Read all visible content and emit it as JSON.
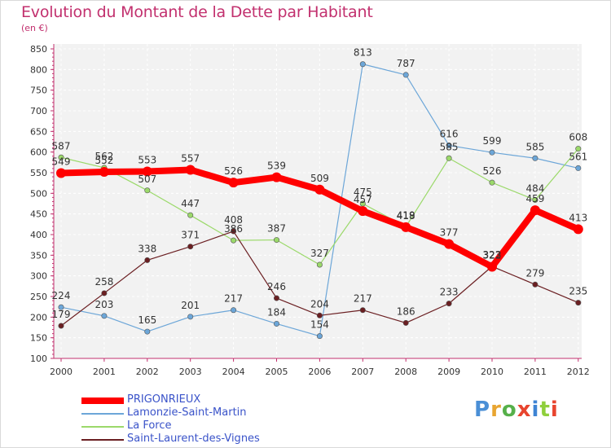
{
  "header": {
    "title": "Evolution du Montant de la Dette par Habitant",
    "subtitle": "(en €)"
  },
  "brand": {
    "text": "Proxiti",
    "colors": [
      "#4a8fd6",
      "#e8a531",
      "#56b04a",
      "#e8442e",
      "#3e84d4",
      "#8fcf3c",
      "#e8442e"
    ]
  },
  "chart_data": {
    "type": "line",
    "x": [
      "2000",
      "2001",
      "2002",
      "2003",
      "2004",
      "2005",
      "2006",
      "2007",
      "2008",
      "2009",
      "2010",
      "2011",
      "2012"
    ],
    "ylim": [
      100,
      850
    ],
    "yticks": [
      "100",
      "150",
      "200",
      "250",
      "300",
      "350",
      "400",
      "450",
      "500",
      "550",
      "600",
      "650",
      "700",
      "750",
      "800",
      "850"
    ],
    "grid": true,
    "legend_position": "bottom-left",
    "series": [
      {
        "name": "PRIGONRIEUX",
        "color": "#ff0000",
        "values": [
          549,
          552,
          553,
          557,
          526,
          539,
          509,
          457,
          418,
          377,
          322,
          459,
          413
        ],
        "labels": [
          "549",
          "552",
          "553",
          "557",
          "526",
          "539",
          "509",
          "457",
          "418",
          "377",
          "322",
          "459",
          "413"
        ]
      },
      {
        "name": "Lamonzie-Saint-Martin",
        "color": "#6ca6d8",
        "values": [
          224,
          203,
          165,
          201,
          217,
          184,
          154,
          813,
          787,
          616,
          599,
          585,
          561
        ],
        "labels": [
          "224",
          "203",
          "165",
          "201",
          "217",
          "184",
          "154",
          "813",
          "787",
          "616",
          "599",
          "585",
          "561"
        ]
      },
      {
        "name": "La Force",
        "color": "#9bd96a",
        "values": [
          587,
          562,
          507,
          447,
          386,
          387,
          327,
          475,
          419,
          585,
          526,
          484,
          608
        ],
        "labels": [
          "587",
          "562",
          "507",
          "447",
          "386",
          "387",
          "327",
          "475",
          "419",
          "585",
          "526",
          "484",
          "608"
        ]
      },
      {
        "name": "Saint-Laurent-des-Vignes",
        "color": "#6b1f22",
        "values": [
          179,
          258,
          338,
          371,
          408,
          246,
          204,
          217,
          186,
          233,
          323,
          279,
          235
        ],
        "labels": [
          "179",
          "258",
          "338",
          "371",
          "408",
          "246",
          "204",
          "217",
          "186",
          "233",
          "323",
          "279",
          "235"
        ]
      }
    ]
  }
}
